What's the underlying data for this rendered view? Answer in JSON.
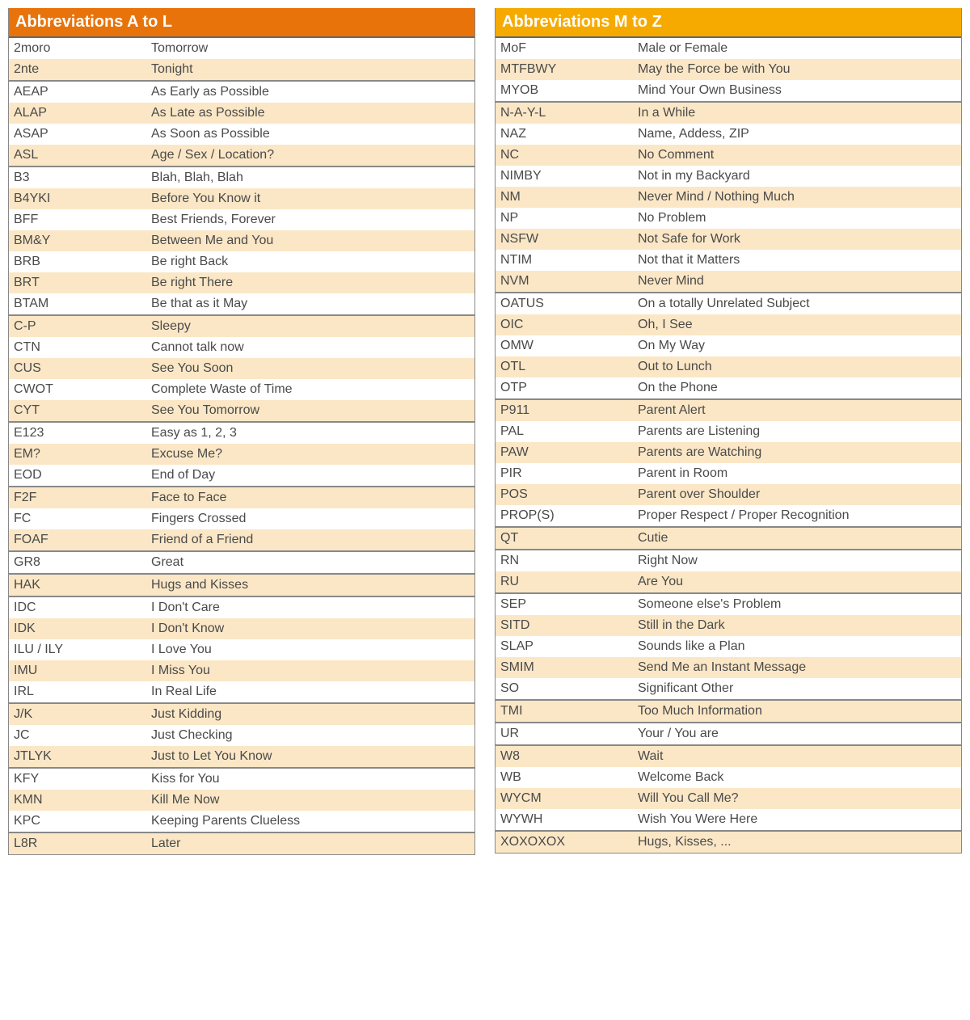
{
  "colors": {
    "header_left": "#e8730b",
    "header_right": "#f6aa00",
    "stripe": "#fbe7c6",
    "text": "#4a4a4a",
    "header_text": "#ffffff"
  },
  "left": {
    "title": "Abbreviations A to L",
    "header_color": "#e8730b",
    "groups": [
      [
        {
          "abbr": "2moro",
          "meaning": "Tomorrow"
        },
        {
          "abbr": "2nte",
          "meaning": "Tonight"
        }
      ],
      [
        {
          "abbr": "AEAP",
          "meaning": "As Early as Possible"
        },
        {
          "abbr": "ALAP",
          "meaning": "As Late as Possible"
        },
        {
          "abbr": "ASAP",
          "meaning": "As Soon as Possible"
        },
        {
          "abbr": "ASL",
          "meaning": "Age / Sex / Location?"
        }
      ],
      [
        {
          "abbr": "B3",
          "meaning": "Blah, Blah, Blah"
        },
        {
          "abbr": "B4YKI",
          "meaning": "Before You Know it"
        },
        {
          "abbr": "BFF",
          "meaning": "Best Friends, Forever"
        },
        {
          "abbr": "BM&Y",
          "meaning": "Between Me and You"
        },
        {
          "abbr": "BRB",
          "meaning": "Be right Back"
        },
        {
          "abbr": "BRT",
          "meaning": "Be right There"
        },
        {
          "abbr": "BTAM",
          "meaning": "Be that as it May"
        }
      ],
      [
        {
          "abbr": "C-P",
          "meaning": "Sleepy"
        },
        {
          "abbr": "CTN",
          "meaning": "Cannot talk now"
        },
        {
          "abbr": "CUS",
          "meaning": "See You Soon"
        },
        {
          "abbr": "CWOT",
          "meaning": "Complete Waste of Time"
        },
        {
          "abbr": "CYT",
          "meaning": "See You Tomorrow"
        }
      ],
      [
        {
          "abbr": "E123",
          "meaning": "Easy as 1, 2, 3"
        },
        {
          "abbr": "EM?",
          "meaning": "Excuse Me?"
        },
        {
          "abbr": "EOD",
          "meaning": "End of Day"
        }
      ],
      [
        {
          "abbr": "F2F",
          "meaning": "Face to Face"
        },
        {
          "abbr": "FC",
          "meaning": "Fingers Crossed"
        },
        {
          "abbr": "FOAF",
          "meaning": "Friend of a Friend"
        }
      ],
      [
        {
          "abbr": "GR8",
          "meaning": "Great"
        }
      ],
      [
        {
          "abbr": "HAK",
          "meaning": "Hugs and Kisses"
        }
      ],
      [
        {
          "abbr": "IDC",
          "meaning": "I Don't Care"
        },
        {
          "abbr": "IDK",
          "meaning": "I Don't Know"
        },
        {
          "abbr": "ILU / ILY",
          "meaning": "I Love You"
        },
        {
          "abbr": "IMU",
          "meaning": "I Miss You"
        },
        {
          "abbr": "IRL",
          "meaning": "In Real Life"
        }
      ],
      [
        {
          "abbr": "J/K",
          "meaning": "Just Kidding"
        },
        {
          "abbr": "JC",
          "meaning": "Just Checking"
        },
        {
          "abbr": "JTLYK",
          "meaning": "Just to Let You Know"
        }
      ],
      [
        {
          "abbr": "KFY",
          "meaning": "Kiss for You"
        },
        {
          "abbr": "KMN",
          "meaning": "Kill Me Now"
        },
        {
          "abbr": "KPC",
          "meaning": "Keeping Parents Clueless"
        }
      ],
      [
        {
          "abbr": "L8R",
          "meaning": "Later"
        }
      ]
    ]
  },
  "right": {
    "title": "Abbreviations M to Z",
    "header_color": "#f6aa00",
    "groups": [
      [
        {
          "abbr": "MoF",
          "meaning": "Male or Female"
        },
        {
          "abbr": "MTFBWY",
          "meaning": "May the Force be with You"
        },
        {
          "abbr": "MYOB",
          "meaning": "Mind Your Own Business"
        }
      ],
      [
        {
          "abbr": "N-A-Y-L",
          "meaning": "In a While"
        },
        {
          "abbr": "NAZ",
          "meaning": "Name, Addess, ZIP"
        },
        {
          "abbr": "NC",
          "meaning": "No Comment"
        },
        {
          "abbr": "NIMBY",
          "meaning": "Not in my Backyard"
        },
        {
          "abbr": "NM",
          "meaning": "Never Mind / Nothing Much"
        },
        {
          "abbr": "NP",
          "meaning": "No Problem"
        },
        {
          "abbr": "NSFW",
          "meaning": "Not Safe for Work"
        },
        {
          "abbr": "NTIM",
          "meaning": "Not that it Matters"
        },
        {
          "abbr": "NVM",
          "meaning": "Never Mind"
        }
      ],
      [
        {
          "abbr": "OATUS",
          "meaning": "On a totally Unrelated Subject"
        },
        {
          "abbr": "OIC",
          "meaning": "Oh, I See"
        },
        {
          "abbr": "OMW",
          "meaning": "On My Way"
        },
        {
          "abbr": "OTL",
          "meaning": "Out to Lunch"
        },
        {
          "abbr": "OTP",
          "meaning": "On the Phone"
        }
      ],
      [
        {
          "abbr": "P911",
          "meaning": "Parent Alert"
        },
        {
          "abbr": "PAL",
          "meaning": "Parents are Listening"
        },
        {
          "abbr": "PAW",
          "meaning": "Parents are Watching"
        },
        {
          "abbr": "PIR",
          "meaning": "Parent in Room"
        },
        {
          "abbr": "POS",
          "meaning": "Parent over Shoulder"
        },
        {
          "abbr": "PROP(S)",
          "meaning": "Proper Respect / Proper Recognition"
        }
      ],
      [
        {
          "abbr": "QT",
          "meaning": "Cutie"
        }
      ],
      [
        {
          "abbr": "RN",
          "meaning": "Right Now"
        },
        {
          "abbr": "RU",
          "meaning": "Are You"
        }
      ],
      [
        {
          "abbr": "SEP",
          "meaning": "Someone else's Problem"
        },
        {
          "abbr": "SITD",
          "meaning": "Still in the Dark"
        },
        {
          "abbr": "SLAP",
          "meaning": "Sounds like a Plan"
        },
        {
          "abbr": "SMIM",
          "meaning": "Send Me an Instant Message"
        },
        {
          "abbr": "SO",
          "meaning": "Significant Other"
        }
      ],
      [
        {
          "abbr": "TMI",
          "meaning": "Too Much Information"
        }
      ],
      [
        {
          "abbr": "UR",
          "meaning": "Your / You are"
        }
      ],
      [
        {
          "abbr": "W8",
          "meaning": "Wait"
        },
        {
          "abbr": "WB",
          "meaning": "Welcome Back"
        },
        {
          "abbr": "WYCM",
          "meaning": "Will You Call Me?"
        },
        {
          "abbr": "WYWH",
          "meaning": "Wish You Were Here"
        }
      ],
      [
        {
          "abbr": "XOXOXOX",
          "meaning": "Hugs, Kisses, ..."
        }
      ]
    ]
  }
}
